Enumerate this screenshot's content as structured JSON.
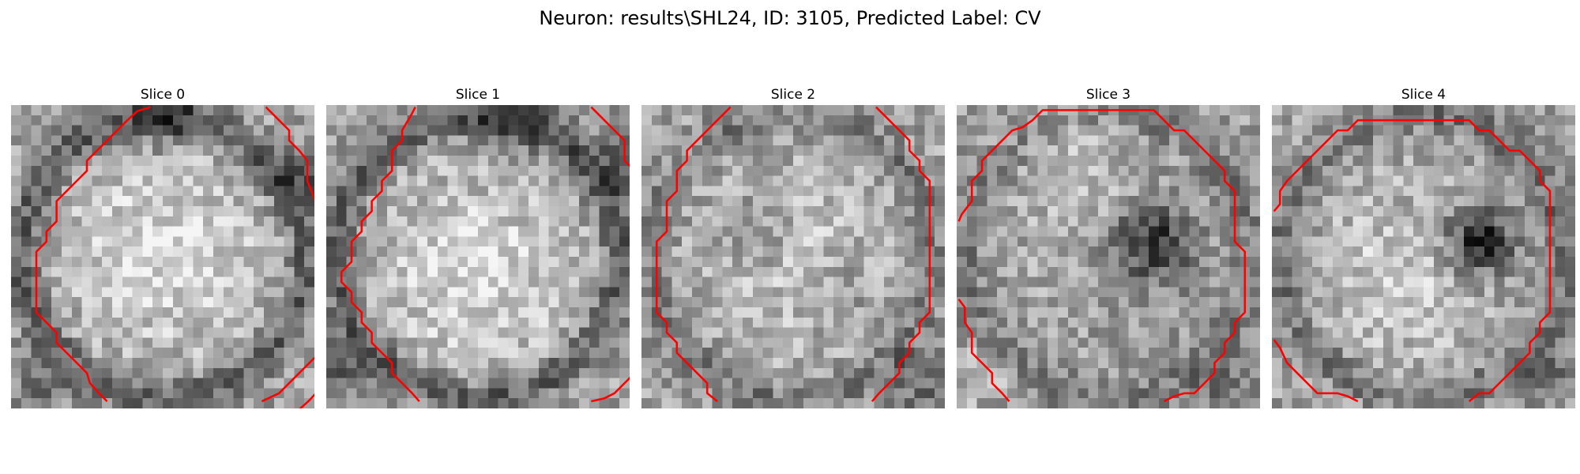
{
  "figure": {
    "title": "Neuron: results\\SHL24, ID: 3105, Predicted Label: CV"
  },
  "panels": [
    {
      "title": "Slice 0",
      "contour_points": [
        [
          13.8,
          0.2
        ],
        [
          12.5,
          0.6
        ],
        [
          11.5,
          1.5
        ],
        [
          10.5,
          2.5
        ],
        [
          9.5,
          3.5
        ],
        [
          8.5,
          4.5
        ],
        [
          7.5,
          5.5
        ],
        [
          7.5,
          6.5
        ],
        [
          6.5,
          7.5
        ],
        [
          5.5,
          8.5
        ],
        [
          4.5,
          9.5
        ],
        [
          4.5,
          10.5
        ],
        [
          4.5,
          11.5
        ],
        [
          3.5,
          12.5
        ],
        [
          3.5,
          13.5
        ],
        [
          2.5,
          14.5
        ],
        [
          2.5,
          15.5
        ],
        [
          2.5,
          16.5
        ],
        [
          2.5,
          17.5
        ],
        [
          2.5,
          18.5
        ],
        [
          2.5,
          19.5
        ],
        [
          2.5,
          20.5
        ],
        [
          3.5,
          21.5
        ],
        [
          4.5,
          22.5
        ],
        [
          4.5,
          23.5
        ],
        [
          5.5,
          24.5
        ],
        [
          6.5,
          25.5
        ],
        [
          7.5,
          26.5
        ],
        [
          7.8,
          27.5
        ],
        [
          8.8,
          28.6
        ],
        [
          9.5,
          29.3
        ]
      ],
      "contour_points_2": [
        [
          25.2,
          0.2
        ],
        [
          26.5,
          1.5
        ],
        [
          27.5,
          2.5
        ],
        [
          27.5,
          3.5
        ],
        [
          28.5,
          4.5
        ],
        [
          29.3,
          5.5
        ],
        [
          29.3,
          7.5
        ],
        [
          30.1,
          9.5
        ],
        [
          30.6,
          10.5
        ]
      ],
      "contour_points_3": [
        [
          30.6,
          28.0
        ],
        [
          29.5,
          29.2
        ],
        [
          28.5,
          30.1
        ]
      ],
      "contour_points_4": [
        [
          24.8,
          29.3
        ],
        [
          26.5,
          28.5
        ],
        [
          27.5,
          27.5
        ],
        [
          28.5,
          26.5
        ],
        [
          29.5,
          25.5
        ],
        [
          30.5,
          24.5
        ],
        [
          31.2,
          24.2
        ]
      ]
    },
    {
      "title": "Slice 1",
      "contour_points": [
        [
          8.8,
          0.2
        ],
        [
          8.5,
          0.8
        ],
        [
          7.5,
          2.5
        ],
        [
          7.5,
          3.5
        ],
        [
          6.5,
          4.5
        ],
        [
          6.5,
          5.5
        ],
        [
          6.5,
          6.5
        ],
        [
          5.5,
          7.5
        ],
        [
          5.5,
          8.5
        ],
        [
          4.5,
          9.5
        ],
        [
          4.5,
          10.5
        ],
        [
          3.5,
          11.5
        ],
        [
          3.5,
          12.5
        ],
        [
          2.5,
          13.5
        ],
        [
          2.5,
          14.5
        ],
        [
          2.5,
          15.5
        ],
        [
          1.5,
          16.5
        ],
        [
          1.5,
          17.5
        ],
        [
          2.5,
          18.5
        ],
        [
          2.5,
          19.5
        ],
        [
          3.5,
          20.5
        ],
        [
          3.5,
          21.5
        ],
        [
          4.5,
          22.5
        ],
        [
          4.5,
          23.5
        ],
        [
          5.5,
          24.5
        ],
        [
          6.5,
          25.5
        ],
        [
          6.5,
          26.5
        ],
        [
          7.5,
          27.5
        ],
        [
          8.5,
          28.5
        ],
        [
          9.2,
          29.3
        ]
      ],
      "contour_points_2": [
        [
          26.2,
          0.2
        ],
        [
          27.5,
          1.5
        ],
        [
          28.5,
          2.5
        ],
        [
          29.5,
          3.5
        ],
        [
          29.5,
          4.5
        ],
        [
          29.5,
          5.5
        ],
        [
          30.5,
          6.5
        ],
        [
          30.8,
          7.5
        ]
      ],
      "contour_points_3": [
        [
          26.2,
          29.3
        ],
        [
          27.5,
          29.0
        ],
        [
          28.5,
          28.5
        ],
        [
          29.5,
          27.5
        ],
        [
          30.5,
          26.5
        ],
        [
          30.5,
          25.5
        ],
        [
          30.8,
          24.8
        ]
      ]
    },
    {
      "title": "Slice 2",
      "contour_points": [
        [
          8.8,
          0.2
        ],
        [
          7.5,
          1.5
        ],
        [
          6.5,
          2.5
        ],
        [
          5.5,
          3.5
        ],
        [
          4.5,
          4.5
        ],
        [
          4.5,
          5.5
        ],
        [
          3.5,
          6.5
        ],
        [
          3.5,
          7.5
        ],
        [
          3.5,
          8.5
        ],
        [
          2.5,
          9.5
        ],
        [
          2.5,
          10.5
        ],
        [
          2.5,
          11.5
        ],
        [
          2.5,
          12.5
        ],
        [
          1.5,
          13.5
        ],
        [
          1.5,
          14.5
        ],
        [
          1.5,
          15.5
        ],
        [
          1.5,
          16.5
        ],
        [
          1.5,
          17.5
        ],
        [
          1.5,
          18.5
        ],
        [
          1.5,
          19.5
        ],
        [
          1.5,
          20.5
        ],
        [
          2.5,
          21.5
        ],
        [
          2.5,
          22.5
        ],
        [
          3.5,
          23.5
        ],
        [
          3.5,
          24.5
        ],
        [
          4.5,
          25.5
        ],
        [
          5.5,
          26.5
        ],
        [
          6.5,
          27.5
        ],
        [
          6.5,
          28.5
        ],
        [
          7.5,
          29.3
        ]
      ],
      "contour_points_2": [
        [
          23.2,
          0.2
        ],
        [
          24.5,
          1.5
        ],
        [
          25.5,
          2.5
        ],
        [
          26.5,
          3.5
        ],
        [
          26.5,
          4.5
        ],
        [
          27.5,
          5.5
        ],
        [
          27.5,
          6.5
        ],
        [
          28.5,
          7.5
        ],
        [
          28.5,
          8.5
        ],
        [
          28.5,
          9.5
        ],
        [
          28.5,
          10.5
        ],
        [
          28.5,
          11.5
        ],
        [
          28.5,
          12.5
        ],
        [
          28.5,
          13.5
        ],
        [
          28.5,
          14.5
        ],
        [
          28.5,
          15.5
        ],
        [
          28.5,
          16.5
        ],
        [
          28.5,
          17.5
        ],
        [
          28.5,
          18.5
        ],
        [
          28.5,
          19.5
        ],
        [
          28.5,
          20.5
        ],
        [
          27.5,
          21.5
        ],
        [
          27.5,
          22.5
        ],
        [
          26.5,
          23.5
        ],
        [
          26.5,
          24.5
        ],
        [
          25.5,
          25.5
        ],
        [
          25.5,
          26.5
        ],
        [
          24.5,
          27.5
        ],
        [
          23.5,
          28.5
        ],
        [
          22.8,
          29.3
        ]
      ]
    },
    {
      "title": "Slice 3",
      "contour_points": [
        [
          0.2,
          11.5
        ],
        [
          0.5,
          10.8
        ],
        [
          1.5,
          9.5
        ],
        [
          1.5,
          8.5
        ],
        [
          1.5,
          7.5
        ],
        [
          2.5,
          6.5
        ],
        [
          2.5,
          5.5
        ],
        [
          3.5,
          4.5
        ],
        [
          4.5,
          3.5
        ],
        [
          5.5,
          2.5
        ],
        [
          6.5,
          2.2
        ],
        [
          7.5,
          1.5
        ],
        [
          8.5,
          0.5
        ],
        [
          9.5,
          0.5
        ],
        [
          10.5,
          0.5
        ],
        [
          11.5,
          0.5
        ],
        [
          12.5,
          0.5
        ],
        [
          13.5,
          0.5
        ],
        [
          14.5,
          0.5
        ],
        [
          15.5,
          0.5
        ],
        [
          16.5,
          0.5
        ],
        [
          17.5,
          0.5
        ],
        [
          18.5,
          0.5
        ],
        [
          19.5,
          0.5
        ],
        [
          20.5,
          1.5
        ],
        [
          21.5,
          2.5
        ],
        [
          22.5,
          2.5
        ],
        [
          23.5,
          3.5
        ],
        [
          24.5,
          4.5
        ],
        [
          25.5,
          5.5
        ],
        [
          26.5,
          6.5
        ],
        [
          26.5,
          7.5
        ],
        [
          27.5,
          8.5
        ],
        [
          27.5,
          9.5
        ],
        [
          27.5,
          10.5
        ],
        [
          27.5,
          11.5
        ],
        [
          27.5,
          12.5
        ],
        [
          27.5,
          13.5
        ],
        [
          28.5,
          14.5
        ],
        [
          28.5,
          15.5
        ],
        [
          28.5,
          16.5
        ],
        [
          28.5,
          17.5
        ],
        [
          28.5,
          18.5
        ],
        [
          28.5,
          19.5
        ],
        [
          28.5,
          20.5
        ],
        [
          27.5,
          21.5
        ],
        [
          27.5,
          22.5
        ],
        [
          26.5,
          23.5
        ],
        [
          26.5,
          24.5
        ],
        [
          25.5,
          25.5
        ],
        [
          25.5,
          26.5
        ],
        [
          24.5,
          27.5
        ],
        [
          23.5,
          28.5
        ],
        [
          22.5,
          28.5
        ],
        [
          21.5,
          28.8
        ],
        [
          20.5,
          29.3
        ]
      ],
      "contour_points_2": [
        [
          0.2,
          19.2
        ],
        [
          0.8,
          20.0
        ],
        [
          0.8,
          21.5
        ],
        [
          1.5,
          22.5
        ],
        [
          1.5,
          23.5
        ],
        [
          1.5,
          24.5
        ],
        [
          2.5,
          25.5
        ],
        [
          3.5,
          26.5
        ],
        [
          3.5,
          27.5
        ],
        [
          4.5,
          28.5
        ],
        [
          5.2,
          29.3
        ]
      ]
    },
    {
      "title": "Slice 4",
      "contour_points": [
        [
          0.2,
          10.5
        ],
        [
          0.8,
          9.8
        ],
        [
          0.8,
          8.5
        ],
        [
          1.5,
          7.5
        ],
        [
          2.5,
          6.5
        ],
        [
          3.5,
          5.5
        ],
        [
          4.5,
          4.5
        ],
        [
          5.5,
          3.5
        ],
        [
          6.5,
          2.5
        ],
        [
          7.5,
          2.5
        ],
        [
          8.5,
          1.5
        ],
        [
          9.5,
          1.5
        ],
        [
          10.5,
          1.5
        ],
        [
          11.5,
          1.5
        ],
        [
          12.5,
          1.5
        ],
        [
          13.5,
          1.5
        ],
        [
          14.5,
          1.5
        ],
        [
          15.5,
          1.5
        ],
        [
          16.5,
          1.5
        ],
        [
          17.5,
          1.5
        ],
        [
          18.5,
          1.5
        ],
        [
          19.5,
          1.5
        ],
        [
          20.5,
          2.5
        ],
        [
          21.5,
          2.5
        ],
        [
          22.5,
          3.5
        ],
        [
          23.5,
          4.5
        ],
        [
          24.5,
          4.5
        ],
        [
          25.5,
          5.5
        ],
        [
          26.5,
          6.5
        ],
        [
          26.5,
          7.5
        ],
        [
          27.5,
          8.5
        ],
        [
          27.5,
          9.5
        ],
        [
          27.5,
          10.5
        ],
        [
          27.5,
          11.5
        ],
        [
          27.5,
          12.5
        ],
        [
          27.5,
          13.5
        ],
        [
          27.5,
          14.5
        ],
        [
          27.5,
          15.5
        ],
        [
          27.5,
          16.5
        ],
        [
          27.5,
          17.5
        ],
        [
          27.5,
          18.5
        ],
        [
          27.5,
          19.5
        ],
        [
          27.5,
          20.5
        ],
        [
          26.5,
          21.5
        ],
        [
          26.5,
          22.5
        ],
        [
          25.5,
          23.5
        ],
        [
          25.5,
          24.5
        ],
        [
          24.5,
          25.5
        ],
        [
          23.5,
          26.5
        ],
        [
          22.5,
          27.5
        ],
        [
          21.5,
          28.5
        ],
        [
          20.5,
          28.5
        ],
        [
          19.5,
          29.3
        ]
      ],
      "contour_points_2": [
        [
          0.2,
          23.2
        ],
        [
          0.8,
          24.0
        ],
        [
          1.5,
          25.5
        ],
        [
          2.5,
          26.5
        ],
        [
          3.5,
          27.5
        ],
        [
          4.5,
          28.5
        ],
        [
          5.5,
          28.5
        ],
        [
          6.5,
          28.5
        ],
        [
          7.5,
          28.8
        ],
        [
          8.5,
          29.3
        ]
      ]
    }
  ]
}
